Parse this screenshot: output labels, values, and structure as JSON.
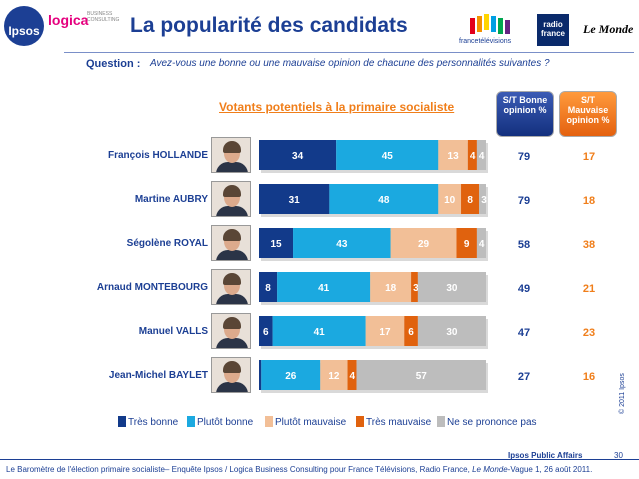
{
  "header": {
    "ipsos_logo": "Ipsos",
    "logica_logo": "logica",
    "logica_sub": "BUSINESS CONSULTING",
    "title": "La popularité des candidats",
    "ftv_label": "francetélévisions",
    "radio_france": "radio france",
    "le_monde": "Le Monde"
  },
  "question": {
    "label": "Question :",
    "text": "Avez-vous une bonne ou une mauvaise opinion de chacune des personnalités suivantes ?"
  },
  "columns": {
    "good_header": "S/T Bonne opinion %",
    "bad_header": "S/T Mauvaise opinion %"
  },
  "footer": {
    "brand": "Ipsos Public Affairs",
    "page_number": "30",
    "source_part1": "Le Baromètre de l'élection primaire socialiste– Enquête Ipsos / Logica Business Consulting pour France Télévisions, Radio France,",
    "source_italic": "Le Monde",
    "source_part2": "-Vague 1, 26 août 2011.",
    "copyright": "© 2011 Ipsos"
  },
  "colors": {
    "tres_bonne": "#123a8a",
    "plutot_bonne": "#1ba9e0",
    "plutot_mauvaise": "#f2bf97",
    "tres_mauvaise": "#e0620e",
    "nspp": "#bdbdbd",
    "good_total": "#1c3f94",
    "bad_total": "#f07e1a"
  },
  "chart_data": {
    "type": "bar",
    "orientation": "horizontal-stacked",
    "title": "Votants potentiels à la primaire socialiste",
    "categories": [
      "François HOLLANDE",
      "Martine AUBRY",
      "Ségolène ROYAL",
      "Arnaud MONTEBOURG",
      "Manuel VALLS",
      "Jean-Michel BAYLET"
    ],
    "series": [
      {
        "name": "Très bonne",
        "values": [
          34,
          31,
          15,
          8,
          6,
          1
        ]
      },
      {
        "name": "Plutôt bonne",
        "values": [
          45,
          48,
          43,
          41,
          41,
          26
        ]
      },
      {
        "name": "Plutôt mauvaise",
        "values": [
          13,
          10,
          29,
          18,
          17,
          12
        ]
      },
      {
        "name": "Très mauvaise",
        "values": [
          4,
          8,
          9,
          3,
          6,
          4
        ]
      },
      {
        "name": "Ne se prononce pas",
        "values": [
          4,
          3,
          4,
          30,
          30,
          57
        ]
      }
    ],
    "good_totals": [
      79,
      79,
      58,
      49,
      47,
      27
    ],
    "bad_totals": [
      17,
      18,
      38,
      21,
      23,
      16
    ],
    "xlim": [
      0,
      100
    ],
    "legend_position": "bottom"
  }
}
